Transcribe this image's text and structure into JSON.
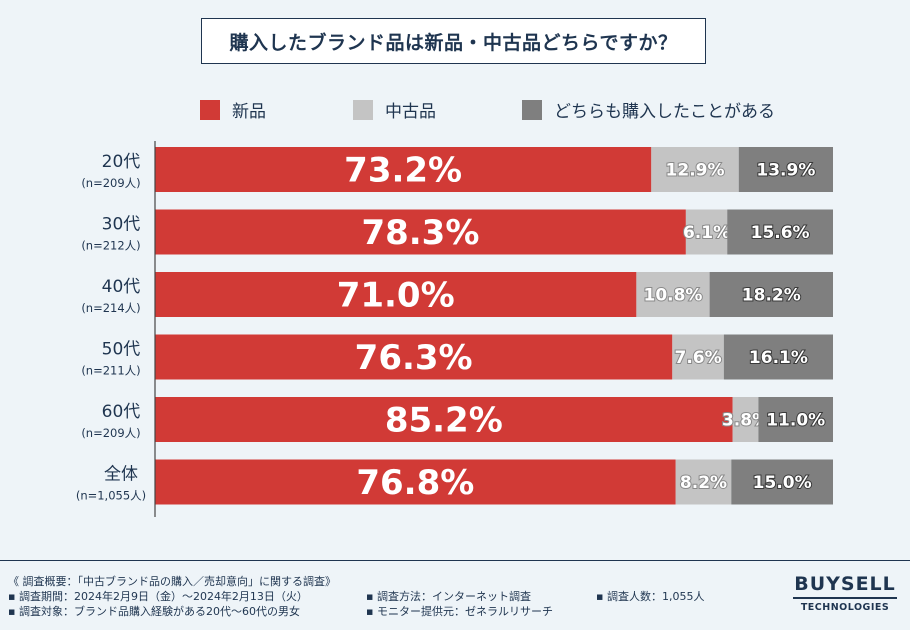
{
  "chart_data": {
    "type": "stacked-horizontal-bar",
    "title": "購入したブランド品は新品・中古品どちらですか？",
    "legend": [
      "新品",
      "中古品",
      "どちらも購入したことがある"
    ],
    "colors": [
      "#d13a36",
      "#c4c4c4",
      "#7f7f7f"
    ],
    "categories": [
      {
        "name": "20代",
        "n": "(n=209人)"
      },
      {
        "name": "30代",
        "n": "(n=212人)"
      },
      {
        "name": "40代",
        "n": "(n=214人)"
      },
      {
        "name": "50代",
        "n": "(n=211人)"
      },
      {
        "name": "60代",
        "n": "(n=209人)"
      },
      {
        "name": "全体",
        "n": "(n=1,055人)"
      }
    ],
    "series": [
      {
        "name": "新品",
        "values": [
          73.2,
          78.3,
          71.0,
          76.3,
          85.2,
          76.8
        ]
      },
      {
        "name": "中古品",
        "values": [
          12.9,
          6.1,
          10.8,
          7.6,
          3.8,
          8.2
        ]
      },
      {
        "name": "どちらも購入したことがある",
        "values": [
          13.9,
          15.6,
          18.2,
          16.1,
          11.0,
          15.0
        ]
      }
    ],
    "xlim": [
      0,
      100
    ]
  },
  "footer": {
    "overview": "《 調査概要：「中古ブランド品の購入／売却意向」に関する調査》",
    "period": "▪ 調査期間：2024年2月9日（金）〜2024年2月13日（火）",
    "target": "▪ 調査対象：ブランド品購入経験がある20代〜60代の男女",
    "method": "▪ 調査方法：インターネット調査",
    "provider": "▪ モニター提供元：ゼネラルリサーチ",
    "count": "▪ 調査人数：1,055人"
  },
  "logo": {
    "top": "BUYSELL",
    "bottom": "TECHNOLOGIES"
  }
}
